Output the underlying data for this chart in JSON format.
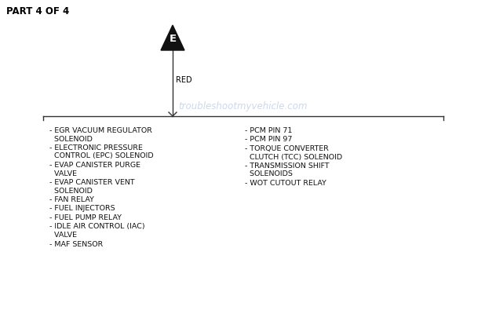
{
  "title": "PART 4 OF 4",
  "background_color": "#ffffff",
  "triangle_label": "E",
  "wire_label": "RED",
  "watermark": "troubleshootmyvehicle.com",
  "watermark_color": "#c8d4e8",
  "left_items": [
    [
      "- EGR VACUUM REGULATOR",
      "  SOLENOID"
    ],
    [
      "- ELECTRONIC PRESSURE",
      "  CONTROL (EPC) SOLENOID"
    ],
    [
      "- EVAP CANISTER PURGE",
      "  VALVE"
    ],
    [
      "- EVAP CANISTER VENT",
      "  SOLENOID"
    ],
    [
      "- FAN RELAY"
    ],
    [
      "- FUEL INJECTORS"
    ],
    [
      "- FUEL PUMP RELAY"
    ],
    [
      "- IDLE AIR CONTROL (IAC)",
      "  VALVE"
    ],
    [
      "- MAF SENSOR"
    ]
  ],
  "right_items": [
    [
      "- PCM PIN 71"
    ],
    [
      "- PCM PIN 97"
    ],
    [
      "- TORQUE CONVERTER",
      "  CLUTCH (TCC) SOLENOID"
    ],
    [
      "- TRANSMISSION SHIFT",
      "  SOLENOIDS"
    ],
    [
      "- WOT CUTOUT RELAY"
    ]
  ],
  "fig_width": 6.18,
  "fig_height": 4.0,
  "dpi": 100
}
